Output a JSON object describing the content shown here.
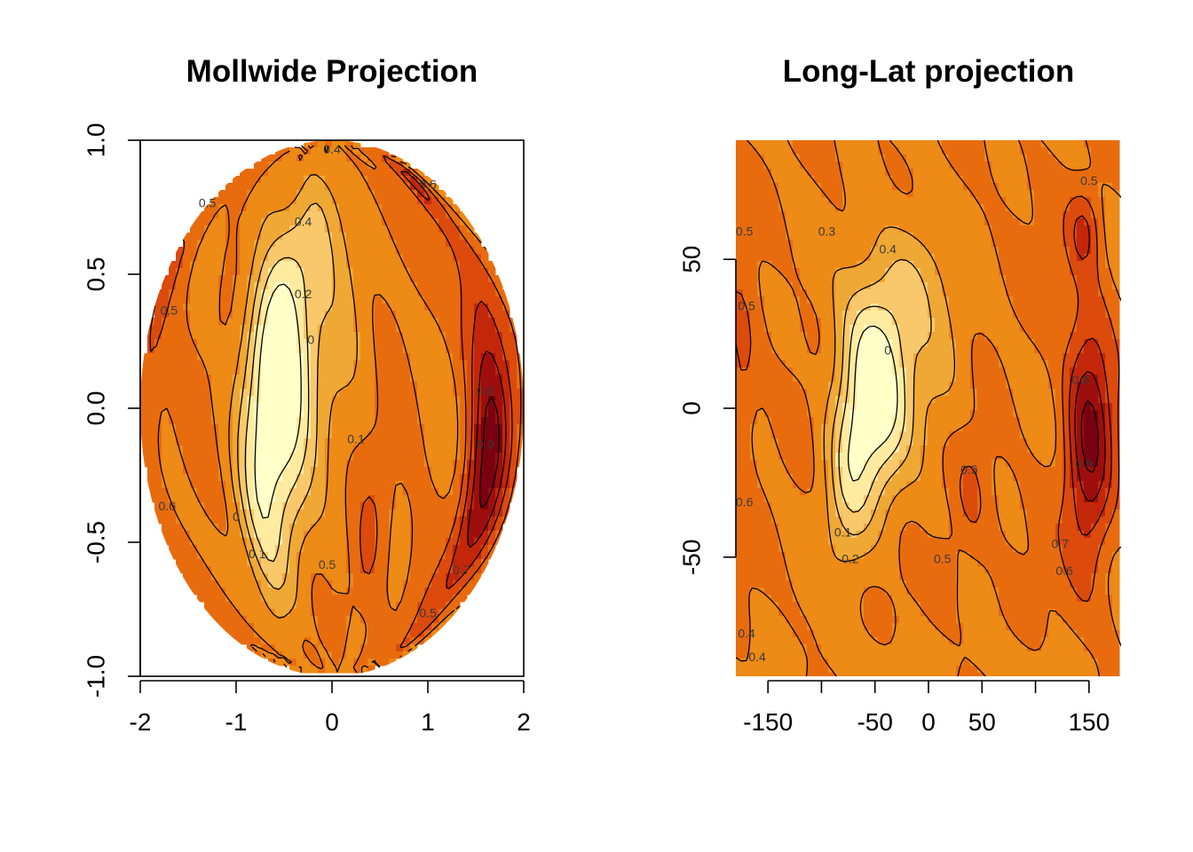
{
  "colors": {
    "scale": [
      "#FFFFC8",
      "#FFEBA0",
      "#F8C86A",
      "#F0A834",
      "#EE8A16",
      "#E86C0E",
      "#DC4A0C",
      "#C4260A",
      "#9E0E0C",
      "#7A0011"
    ],
    "contour_line": "#000000",
    "background": "#ffffff"
  },
  "chart_data": [
    {
      "type": "heatmap",
      "title": "Mollwide Projection",
      "xlabel": "",
      "ylabel": "",
      "xlim": [
        -2,
        2
      ],
      "ylim": [
        -1,
        1
      ],
      "x_ticks": [
        -2,
        -1,
        0,
        1,
        2
      ],
      "x_tick_labels": [
        "-2",
        "-1",
        "0",
        "1",
        "2"
      ],
      "y_ticks": [
        -1,
        -0.5,
        0,
        0.5,
        1
      ],
      "y_tick_labels": [
        "-1.0",
        "-0.5",
        "0.0",
        "0.5",
        "1.0"
      ],
      "contour_levels": [
        0,
        0.1,
        0.2,
        0.3,
        0.4,
        0.5,
        0.6,
        0.7,
        0.8,
        0.9
      ],
      "contour_labels": [
        {
          "text": "0.4",
          "x": 0.0,
          "y": 0.95
        },
        {
          "text": "0.4",
          "x": -0.3,
          "y": 0.68
        },
        {
          "text": "0.2",
          "x": -0.3,
          "y": 0.41
        },
        {
          "text": "0",
          "x": -0.22,
          "y": 0.24
        },
        {
          "text": "0.1",
          "x": 0.25,
          "y": -0.13
        },
        {
          "text": "0.5",
          "x": -1.7,
          "y": 0.35
        },
        {
          "text": "0.6",
          "x": -1.72,
          "y": -0.38
        },
        {
          "text": "0.8",
          "x": 1.6,
          "y": 0.05
        },
        {
          "text": "0.7",
          "x": 1.35,
          "y": -0.62
        },
        {
          "text": "0.5",
          "x": 1.0,
          "y": -0.78
        },
        {
          "text": "0.5",
          "x": -0.05,
          "y": -0.6
        },
        {
          "text": "0.1",
          "x": -0.78,
          "y": -0.56
        },
        {
          "text": "0",
          "x": -1.0,
          "y": -0.42
        },
        {
          "text": "0.9",
          "x": 1.6,
          "y": -0.15
        },
        {
          "text": "0.5",
          "x": -1.3,
          "y": 0.75
        },
        {
          "text": "0.6",
          "x": 1.0,
          "y": 0.82
        }
      ]
    },
    {
      "type": "heatmap",
      "title": "Long-Lat projection",
      "xlabel": "",
      "ylabel": "",
      "xlim": [
        -180,
        180
      ],
      "ylim": [
        -90,
        90
      ],
      "x_ticks": [
        -150,
        -100,
        -50,
        0,
        50,
        100,
        150
      ],
      "x_tick_labels": [
        "-150",
        "",
        "-50",
        "0",
        "50",
        "",
        "150"
      ],
      "y_ticks": [
        -50,
        0,
        50
      ],
      "y_tick_labels": [
        "-50",
        "0",
        "50"
      ],
      "contour_levels": [
        0,
        0.1,
        0.2,
        0.3,
        0.4,
        0.5,
        0.6,
        0.7,
        0.8,
        0.9
      ],
      "contour_labels": [
        {
          "text": "0.5",
          "x": 150,
          "y": 75
        },
        {
          "text": "0.3",
          "x": -95,
          "y": 58
        },
        {
          "text": "0.4",
          "x": -38,
          "y": 52
        },
        {
          "text": "0.5",
          "x": -170,
          "y": 33
        },
        {
          "text": "0",
          "x": -38,
          "y": 18
        },
        {
          "text": "0.5",
          "x": 38,
          "y": -22
        },
        {
          "text": "0.1",
          "x": -80,
          "y": -43
        },
        {
          "text": "0.2",
          "x": -73,
          "y": -52
        },
        {
          "text": "0.5",
          "x": 13,
          "y": -52
        },
        {
          "text": "0.7",
          "x": 123,
          "y": -47
        },
        {
          "text": "0.6",
          "x": 127,
          "y": -56
        },
        {
          "text": "0.8",
          "x": 142,
          "y": 8
        },
        {
          "text": "0.9",
          "x": 145,
          "y": -20
        },
        {
          "text": "0.6",
          "x": -172,
          "y": -33
        },
        {
          "text": "0.4",
          "x": -170,
          "y": -77
        },
        {
          "text": "0.4",
          "x": -160,
          "y": -85
        },
        {
          "text": "0.5",
          "x": -172,
          "y": 58
        }
      ]
    }
  ]
}
